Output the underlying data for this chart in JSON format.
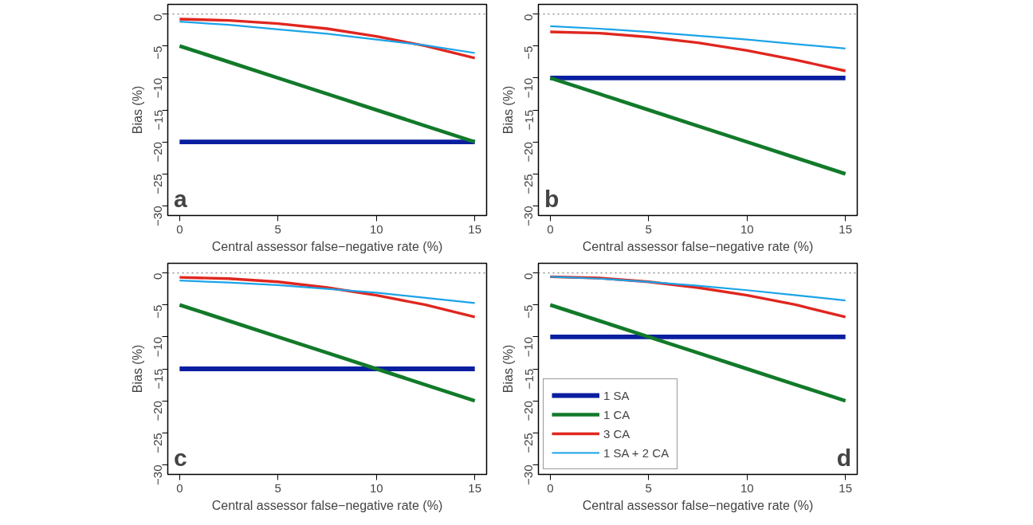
{
  "chart_data": [
    {
      "type": "line",
      "xlabel": "Central assessor false−negative rate (%)",
      "ylabel": "Bias (%)",
      "annotations": [
        "a"
      ],
      "x": [
        0,
        2.5,
        5,
        7.5,
        10,
        12.5,
        15
      ],
      "xlim": [
        -0.6,
        15.6
      ],
      "ylim": [
        -31.5,
        1.5
      ],
      "xticks": [
        0,
        5,
        10,
        15
      ],
      "yticks": [
        {
          "value": -30,
          "label": "−30"
        },
        {
          "value": -25,
          "label": "−25"
        },
        {
          "value": -20,
          "label": "−20"
        },
        {
          "value": -15,
          "label": "−15"
        },
        {
          "value": -10,
          "label": "−10"
        },
        {
          "value": -5,
          "label": "−5"
        },
        0
      ],
      "ref_lines": [
        {
          "axis": "y",
          "value": 0,
          "color": "#808080",
          "line_style": "dotted"
        }
      ],
      "grid": false,
      "legend": false,
      "marker": "none",
      "line_style": "solid",
      "series": [
        {
          "color": "#0a1fa0",
          "values": [
            -20,
            -20,
            -20,
            -20,
            -20,
            -20,
            -20
          ]
        },
        {
          "color": "#127a2a",
          "values": [
            -5,
            -7.5,
            -10,
            -12.5,
            -15,
            -17.5,
            -20
          ]
        },
        {
          "color": "#e0261f",
          "values": [
            -0.8,
            -1.0,
            -1.5,
            -2.3,
            -3.5,
            -5.0,
            -6.9
          ]
        },
        {
          "color": "#1ba3e8",
          "values": [
            -1.2,
            -1.7,
            -2.4,
            -3.1,
            -4.0,
            -4.9,
            -6.1
          ]
        }
      ]
    },
    {
      "type": "line",
      "xlabel": "Central assessor false−negative rate (%)",
      "ylabel": "Bias (%)",
      "annotations": [
        "b"
      ],
      "x": [
        0,
        2.5,
        5,
        7.5,
        10,
        12.5,
        15
      ],
      "xlim": [
        -0.6,
        15.6
      ],
      "ylim": [
        -31.5,
        1.5
      ],
      "xticks": [
        0,
        5,
        10,
        15
      ],
      "yticks": [
        {
          "value": -30,
          "label": "−30"
        },
        {
          "value": -25,
          "label": "−25"
        },
        {
          "value": -20,
          "label": "−20"
        },
        {
          "value": -15,
          "label": "−15"
        },
        {
          "value": -10,
          "label": "−10"
        },
        {
          "value": -5,
          "label": "−5"
        },
        0
      ],
      "ref_lines": [
        {
          "axis": "y",
          "value": 0,
          "color": "#808080",
          "line_style": "dotted"
        }
      ],
      "grid": false,
      "legend": false,
      "marker": "none",
      "line_style": "solid",
      "series": [
        {
          "color": "#0a1fa0",
          "values": [
            -10,
            -10,
            -10,
            -10,
            -10,
            -10,
            -10
          ]
        },
        {
          "color": "#127a2a",
          "values": [
            -10,
            -12.5,
            -15,
            -17.5,
            -20,
            -22.5,
            -25
          ]
        },
        {
          "color": "#e0261f",
          "values": [
            -2.8,
            -3.0,
            -3.6,
            -4.5,
            -5.7,
            -7.2,
            -8.9
          ]
        },
        {
          "color": "#1ba3e8",
          "values": [
            -1.9,
            -2.3,
            -2.8,
            -3.4,
            -4.0,
            -4.7,
            -5.4
          ]
        }
      ]
    },
    {
      "type": "line",
      "xlabel": "Central assessor false−negative rate (%)",
      "ylabel": "Bias (%)",
      "annotations": [
        "c"
      ],
      "x": [
        0,
        2.5,
        5,
        7.5,
        10,
        12.5,
        15
      ],
      "xlim": [
        -0.6,
        15.6
      ],
      "ylim": [
        -31.5,
        1.5
      ],
      "xticks": [
        0,
        5,
        10,
        15
      ],
      "yticks": [
        {
          "value": -30,
          "label": "−30"
        },
        {
          "value": -25,
          "label": "−25"
        },
        {
          "value": -20,
          "label": "−20"
        },
        {
          "value": -15,
          "label": "−15"
        },
        {
          "value": -10,
          "label": "−10"
        },
        {
          "value": -5,
          "label": "−5"
        },
        0
      ],
      "ref_lines": [
        {
          "axis": "y",
          "value": 0,
          "color": "#808080",
          "line_style": "dotted"
        }
      ],
      "grid": false,
      "legend": false,
      "marker": "none",
      "line_style": "solid",
      "series": [
        {
          "color": "#0a1fa0",
          "values": [
            -15,
            -15,
            -15,
            -15,
            -15,
            -15,
            -15
          ]
        },
        {
          "color": "#127a2a",
          "values": [
            -5,
            -7.5,
            -10,
            -12.5,
            -15,
            -17.5,
            -20
          ]
        },
        {
          "color": "#e0261f",
          "values": [
            -0.7,
            -0.9,
            -1.4,
            -2.3,
            -3.5,
            -5.0,
            -6.9
          ]
        },
        {
          "color": "#1ba3e8",
          "values": [
            -1.2,
            -1.5,
            -1.9,
            -2.5,
            -3.1,
            -3.9,
            -4.7
          ]
        }
      ]
    },
    {
      "type": "line",
      "xlabel": "Central assessor false−negative rate (%)",
      "ylabel": "Bias (%)",
      "annotations": [
        "d"
      ],
      "x": [
        0,
        2.5,
        5,
        7.5,
        10,
        12.5,
        15
      ],
      "xlim": [
        -0.6,
        15.6
      ],
      "ylim": [
        -31.5,
        1.5
      ],
      "xticks": [
        0,
        5,
        10,
        15
      ],
      "yticks": [
        {
          "value": -30,
          "label": "−30"
        },
        {
          "value": -25,
          "label": "−25"
        },
        {
          "value": -20,
          "label": "−20"
        },
        {
          "value": -15,
          "label": "−15"
        },
        {
          "value": -10,
          "label": "−10"
        },
        {
          "value": -5,
          "label": "−5"
        },
        0
      ],
      "ref_lines": [
        {
          "axis": "y",
          "value": 0,
          "color": "#808080",
          "line_style": "dotted"
        }
      ],
      "grid": false,
      "legend": "bottom left",
      "marker": "none",
      "line_style": "solid",
      "series": [
        {
          "name": "1 SA",
          "color": "#0a1fa0",
          "values": [
            -10,
            -10,
            -10,
            -10,
            -10,
            -10,
            -10
          ]
        },
        {
          "name": "1 CA",
          "color": "#127a2a",
          "values": [
            -5,
            -7.5,
            -10,
            -12.5,
            -15,
            -17.5,
            -20
          ]
        },
        {
          "name": "3 CA",
          "color": "#e0261f",
          "values": [
            -0.6,
            -0.8,
            -1.4,
            -2.3,
            -3.5,
            -5.0,
            -6.9
          ]
        },
        {
          "name": "1 SA + 2 CA",
          "color": "#1ba3e8",
          "values": [
            -0.6,
            -0.9,
            -1.4,
            -2.0,
            -2.7,
            -3.5,
            -4.3
          ]
        }
      ]
    }
  ]
}
